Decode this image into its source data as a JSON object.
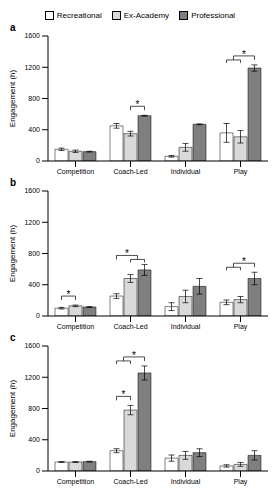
{
  "chart_data": [
    {
      "type": "bar",
      "title": "a",
      "y_label": "Engagement (h)",
      "categories": [
        "Competition",
        "Coach-Led",
        "Individual",
        "Play"
      ],
      "ylim": [
        0,
        1600
      ],
      "yticks": [
        0,
        400,
        800,
        1200,
        1600
      ],
      "grid": false,
      "legend": "top",
      "series": [
        {
          "name": "Recreational",
          "color": "#ffffff",
          "values": [
            150,
            450,
            60,
            360
          ],
          "errors": [
            15,
            30,
            10,
            120
          ]
        },
        {
          "name": "Ex-Academy",
          "color": "#d9d9d9",
          "values": [
            125,
            350,
            175,
            310
          ],
          "errors": [
            15,
            30,
            50,
            80
          ]
        },
        {
          "name": "Professional",
          "color": "#7f7f7f",
          "values": [
            120,
            580,
            470,
            1190
          ],
          "errors": [
            5,
            5,
            5,
            40
          ]
        }
      ],
      "annotations": [
        {
          "category": "Coach-Led",
          "left": [
            "Ex-Academy"
          ],
          "right": [
            "Professional"
          ],
          "text": "*"
        },
        {
          "category": "Play",
          "left": [
            "Recreational",
            "Ex-Academy"
          ],
          "right": [
            "Professional"
          ],
          "text": "*"
        }
      ]
    },
    {
      "type": "bar",
      "title": "b",
      "y_label": "Engagement (h)",
      "categories": [
        "Competition",
        "Coach-Led",
        "Individual",
        "Play"
      ],
      "ylim": [
        0,
        1600
      ],
      "yticks": [
        0,
        400,
        800,
        1200,
        1600
      ],
      "grid": false,
      "series": [
        {
          "name": "Recreational",
          "color": "#ffffff",
          "values": [
            100,
            255,
            120,
            175
          ],
          "errors": [
            10,
            30,
            50,
            30
          ]
        },
        {
          "name": "Ex-Academy",
          "color": "#d9d9d9",
          "values": [
            130,
            480,
            250,
            210
          ],
          "errors": [
            10,
            50,
            80,
            40
          ]
        },
        {
          "name": "Professional",
          "color": "#7f7f7f",
          "values": [
            115,
            590,
            380,
            480
          ],
          "errors": [
            5,
            70,
            100,
            80
          ]
        }
      ],
      "annotations": [
        {
          "category": "Competition",
          "left": [
            "Recreational"
          ],
          "right": [
            "Ex-Academy"
          ],
          "text": "*"
        },
        {
          "category": "Coach-Led",
          "left": [
            "Recreational"
          ],
          "right": [
            "Ex-Academy",
            "Professional"
          ],
          "text": "*"
        },
        {
          "category": "Play",
          "left": [
            "Recreational",
            "Ex-Academy"
          ],
          "right": [
            "Professional"
          ],
          "text": "*"
        }
      ]
    },
    {
      "type": "bar",
      "title": "c",
      "y_label": "Engagement (h)",
      "categories": [
        "Competition",
        "Coach-Led",
        "Individual",
        "Play"
      ],
      "ylim": [
        0,
        1600
      ],
      "yticks": [
        0,
        400,
        800,
        1200,
        1600
      ],
      "grid": false,
      "series": [
        {
          "name": "Recreational",
          "color": "#ffffff",
          "values": [
            115,
            260,
            165,
            65
          ],
          "errors": [
            5,
            25,
            40,
            15
          ]
        },
        {
          "name": "Ex-Academy",
          "color": "#d9d9d9",
          "values": [
            115,
            780,
            200,
            85
          ],
          "errors": [
            5,
            60,
            50,
            25
          ]
        },
        {
          "name": "Professional",
          "color": "#7f7f7f",
          "values": [
            120,
            1255,
            235,
            200
          ],
          "errors": [
            5,
            90,
            50,
            60
          ]
        }
      ],
      "annotations": [
        {
          "category": "Coach-Led",
          "left": [
            "Recreational"
          ],
          "right": [
            "Ex-Academy"
          ],
          "text": "*"
        },
        {
          "category": "Coach-Led",
          "left": [
            "Recreational",
            "Ex-Academy"
          ],
          "right": [
            "Professional"
          ],
          "text": "*"
        }
      ]
    }
  ]
}
